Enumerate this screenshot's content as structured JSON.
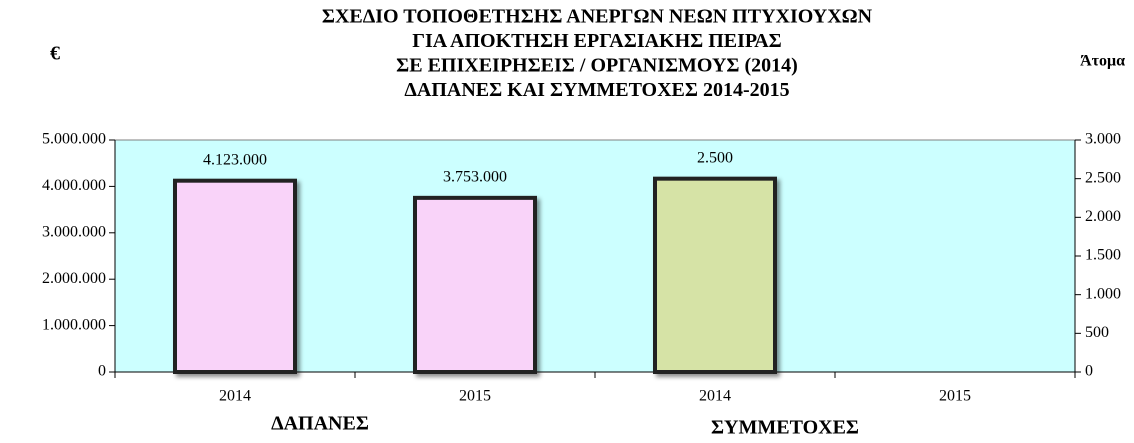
{
  "chart_data": {
    "type": "bar",
    "title": [
      "ΣΧΕΔΙΟ ΤΟΠΟΘΕΤΗΣΗΣ ΑΝΕΡΓΩΝ ΝΕΩΝ ΠΤΥΧΙΟΥΧΩΝ",
      "ΓΙΑ ΑΠΟΚΤΗΣΗ ΕΡΓΑΣΙΑΚΗΣ ΠΕΙΡΑΣ",
      "ΣΕ ΕΠΙΧΕΙΡΗΣΕΙΣ / ΟΡΓΑΝΙΣΜΟΥΣ (2014)",
      "ΔΑΠΑΝΕΣ ΚΑΙ ΣΥΜΜΕΤΟΧΕΣ 2014-2015"
    ],
    "y_label": "€",
    "y2_label": "Άτομα",
    "categories": [
      "2014",
      "2015",
      "2014",
      "2015"
    ],
    "series": [
      {
        "name": "ΔΑΠΑΝΕΣ",
        "color": "#f9d3f9",
        "values": [
          4123000,
          3753000,
          null,
          null
        ],
        "value_labels": [
          "4.123.000",
          "3.753.000",
          null,
          null
        ]
      },
      {
        "name": "ΣΥΜΜΕΤΟΧΕΣ",
        "color": "#d6e3a6",
        "axis": "y2",
        "values": [
          null,
          null,
          2500,
          null
        ],
        "value_labels": [
          null,
          null,
          "2.500",
          null
        ]
      }
    ],
    "ylim": [
      0,
      5000000
    ],
    "yticks": [
      0,
      {
        "value": 1000000,
        "label": "1.000.000"
      },
      {
        "value": 2000000,
        "label": "2.000.000"
      },
      {
        "value": 3000000,
        "label": "3.000.000"
      },
      {
        "value": 4000000,
        "label": "4.000.000"
      },
      {
        "value": 5000000,
        "label": "5.000.000"
      }
    ],
    "y2lim": [
      0,
      3000
    ],
    "y2ticks": [
      0,
      500,
      {
        "value": 1000,
        "label": "1.000"
      },
      {
        "value": 1500,
        "label": "1.500"
      },
      {
        "value": 2000,
        "label": "2.000"
      },
      {
        "value": 2500,
        "label": "2.500"
      },
      {
        "value": 3000,
        "label": "3.000"
      }
    ],
    "background": "#ccffff"
  }
}
